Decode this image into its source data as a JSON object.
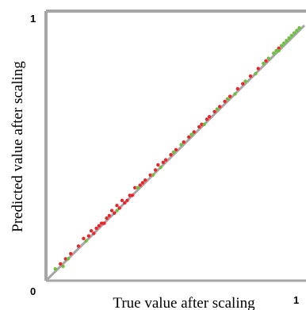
{
  "chart_data": {
    "type": "scatter",
    "xlabel": "True value after scaling",
    "ylabel": "Predicted value after scaling",
    "xlim": [
      0,
      1
    ],
    "ylim": [
      0,
      1
    ],
    "grid": false,
    "x_ticks": [
      {
        "value": 0,
        "label": "0"
      },
      {
        "value": 1,
        "label": "1"
      }
    ],
    "y_ticks": [
      {
        "value": 1,
        "label": "1"
      }
    ],
    "reference_line": {
      "from": [
        0,
        0
      ],
      "to": [
        1,
        1
      ],
      "color": "#a6a6a6"
    },
    "series": [
      {
        "color": "#e8262b",
        "points": [
          [
            0.05,
            0.06
          ],
          [
            0.07,
            0.08
          ],
          [
            0.09,
            0.1
          ],
          [
            0.12,
            0.13
          ],
          [
            0.14,
            0.16
          ],
          [
            0.16,
            0.17
          ],
          [
            0.17,
            0.19
          ],
          [
            0.18,
            0.18
          ],
          [
            0.19,
            0.2
          ],
          [
            0.2,
            0.21
          ],
          [
            0.21,
            0.22
          ],
          [
            0.22,
            0.22
          ],
          [
            0.23,
            0.24
          ],
          [
            0.24,
            0.25
          ],
          [
            0.25,
            0.27
          ],
          [
            0.26,
            0.26
          ],
          [
            0.27,
            0.29
          ],
          [
            0.28,
            0.28
          ],
          [
            0.29,
            0.31
          ],
          [
            0.3,
            0.3
          ],
          [
            0.31,
            0.31
          ],
          [
            0.32,
            0.33
          ],
          [
            0.33,
            0.33
          ],
          [
            0.34,
            0.36
          ],
          [
            0.36,
            0.37
          ],
          [
            0.37,
            0.38
          ],
          [
            0.38,
            0.39
          ],
          [
            0.4,
            0.41
          ],
          [
            0.42,
            0.43
          ],
          [
            0.43,
            0.45
          ],
          [
            0.45,
            0.46
          ],
          [
            0.46,
            0.47
          ],
          [
            0.48,
            0.49
          ],
          [
            0.5,
            0.51
          ],
          [
            0.53,
            0.54
          ],
          [
            0.55,
            0.56
          ],
          [
            0.57,
            0.58
          ],
          [
            0.59,
            0.6
          ],
          [
            0.6,
            0.61
          ],
          [
            0.62,
            0.63
          ],
          [
            0.63,
            0.64
          ],
          [
            0.65,
            0.66
          ],
          [
            0.67,
            0.68
          ],
          [
            0.69,
            0.7
          ],
          [
            0.71,
            0.72
          ],
          [
            0.74,
            0.75
          ],
          [
            0.76,
            0.77
          ],
          [
            0.79,
            0.8
          ],
          [
            0.82,
            0.83
          ],
          [
            0.85,
            0.86
          ],
          [
            0.9,
            0.91
          ]
        ]
      },
      {
        "color": "#6dbf3f",
        "points": [
          [
            0.03,
            0.04
          ],
          [
            0.06,
            0.05
          ],
          [
            0.08,
            0.08
          ],
          [
            0.15,
            0.15
          ],
          [
            0.27,
            0.27
          ],
          [
            0.35,
            0.36
          ],
          [
            0.41,
            0.41
          ],
          [
            0.44,
            0.44
          ],
          [
            0.49,
            0.5
          ],
          [
            0.52,
            0.53
          ],
          [
            0.56,
            0.57
          ],
          [
            0.61,
            0.61
          ],
          [
            0.66,
            0.67
          ],
          [
            0.7,
            0.71
          ],
          [
            0.73,
            0.73
          ],
          [
            0.77,
            0.78
          ],
          [
            0.81,
            0.81
          ],
          [
            0.84,
            0.85
          ],
          [
            0.86,
            0.87
          ],
          [
            0.88,
            0.89
          ],
          [
            0.89,
            0.9
          ],
          [
            0.9,
            0.9
          ],
          [
            0.91,
            0.92
          ],
          [
            0.92,
            0.93
          ],
          [
            0.93,
            0.94
          ],
          [
            0.94,
            0.95
          ],
          [
            0.95,
            0.96
          ],
          [
            0.96,
            0.97
          ],
          [
            0.97,
            0.98
          ],
          [
            0.98,
            0.99
          ]
        ]
      }
    ]
  }
}
